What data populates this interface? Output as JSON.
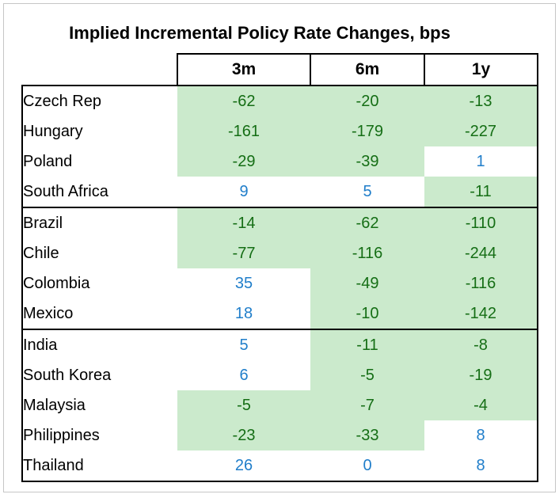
{
  "chart_data": {
    "type": "table",
    "title": "Implied Incremental Policy Rate Changes, bps",
    "columns": [
      "3m",
      "6m",
      "1y"
    ],
    "groups": [
      {
        "rows": [
          {
            "country": "Czech Rep",
            "values": [
              -62,
              -20,
              -13
            ]
          },
          {
            "country": "Hungary",
            "values": [
              -161,
              -179,
              -227
            ]
          },
          {
            "country": "Poland",
            "values": [
              -29,
              -39,
              1
            ]
          },
          {
            "country": "South Africa",
            "values": [
              9,
              5,
              -11
            ]
          }
        ]
      },
      {
        "rows": [
          {
            "country": "Brazil",
            "values": [
              -14,
              -62,
              -110
            ]
          },
          {
            "country": "Chile",
            "values": [
              -77,
              -116,
              -244
            ]
          },
          {
            "country": "Colombia",
            "values": [
              35,
              -49,
              -116
            ]
          },
          {
            "country": "Mexico",
            "values": [
              18,
              -10,
              -142
            ]
          }
        ]
      },
      {
        "rows": [
          {
            "country": "India",
            "values": [
              5,
              -11,
              -8
            ]
          },
          {
            "country": "South Korea",
            "values": [
              6,
              -5,
              -19
            ]
          },
          {
            "country": "Malaysia",
            "values": [
              -5,
              -7,
              -4
            ]
          },
          {
            "country": "Philippines",
            "values": [
              -23,
              -33,
              8
            ]
          },
          {
            "country": "Thailand",
            "values": [
              26,
              0,
              8
            ]
          }
        ]
      }
    ],
    "highlight_rule": "negative values shown as dark-green text on light-green fill; non-negative values shown as blue text on white"
  },
  "colors": {
    "green_bg": "#CBEACC",
    "green_text": "#156E15",
    "blue_text": "#207ECA",
    "table_border": "#000000",
    "frame_border": "#C6C6C6"
  }
}
